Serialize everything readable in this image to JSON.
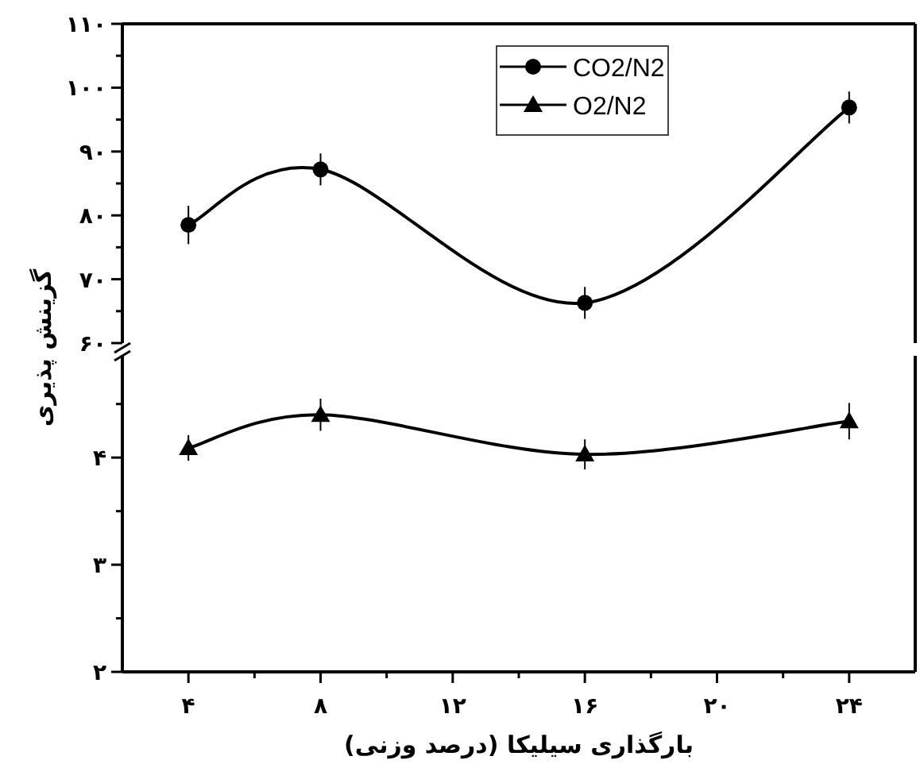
{
  "chart_data": [
    {
      "type": "line",
      "ylabel": "گزینش پذیری",
      "x": [
        4,
        8,
        16,
        24
      ],
      "xlim": [
        2,
        26
      ],
      "ylim": [
        60,
        110
      ],
      "yticks": [
        {
          "value": 60,
          "label": "۶۰"
        },
        {
          "value": 65,
          "label": null
        },
        {
          "value": 70,
          "label": "۷۰"
        },
        {
          "value": 75,
          "label": null
        },
        {
          "value": 80,
          "label": "۸۰"
        },
        {
          "value": 85,
          "label": null
        },
        {
          "value": 90,
          "label": "۹۰"
        },
        {
          "value": 95,
          "label": null
        },
        {
          "value": 100,
          "label": "۱۰۰"
        },
        {
          "value": 105,
          "label": null
        },
        {
          "value": 110,
          "label": "۱۱۰"
        }
      ],
      "tick_labels": "y",
      "legend": "top",
      "grid": false,
      "series": [
        {
          "name": "CO2/N2",
          "color": "#000000",
          "marker": "circle",
          "values": [
            78.5,
            87.2,
            66.3,
            96.9
          ],
          "errors": [
            3,
            2.5,
            2.5,
            2.5
          ]
        }
      ]
    },
    {
      "type": "line",
      "xlabel": "بارگذاری سیلیکا (درصد وزنی)",
      "x": [
        4,
        8,
        16,
        24
      ],
      "xlim": [
        2,
        26
      ],
      "xticks": [
        {
          "value": 4,
          "label": "۴"
        },
        {
          "value": 6,
          "label": null
        },
        {
          "value": 8,
          "label": "۸"
        },
        {
          "value": 10,
          "label": null
        },
        {
          "value": 12,
          "label": "۱۲"
        },
        {
          "value": 14,
          "label": null
        },
        {
          "value": 16,
          "label": "۱۶"
        },
        {
          "value": 18,
          "label": null
        },
        {
          "value": 20,
          "label": "۲۰"
        },
        {
          "value": 22,
          "label": null
        },
        {
          "value": 24,
          "label": "۲۴"
        }
      ],
      "ylim": [
        2,
        4.95
      ],
      "yticks": [
        {
          "value": 2,
          "label": "۲"
        },
        {
          "value": 2.5,
          "label": null
        },
        {
          "value": 3,
          "label": "۳"
        },
        {
          "value": 3.5,
          "label": null
        },
        {
          "value": 4,
          "label": "۴"
        },
        {
          "value": 4.5,
          "label": null
        }
      ],
      "grid": false,
      "series": [
        {
          "name": "O2/N2",
          "color": "#000000",
          "marker": "triangle",
          "values": [
            4.09,
            4.4,
            4.03,
            4.34
          ],
          "errors": [
            0.12,
            0.15,
            0.14,
            0.17
          ]
        }
      ]
    }
  ]
}
